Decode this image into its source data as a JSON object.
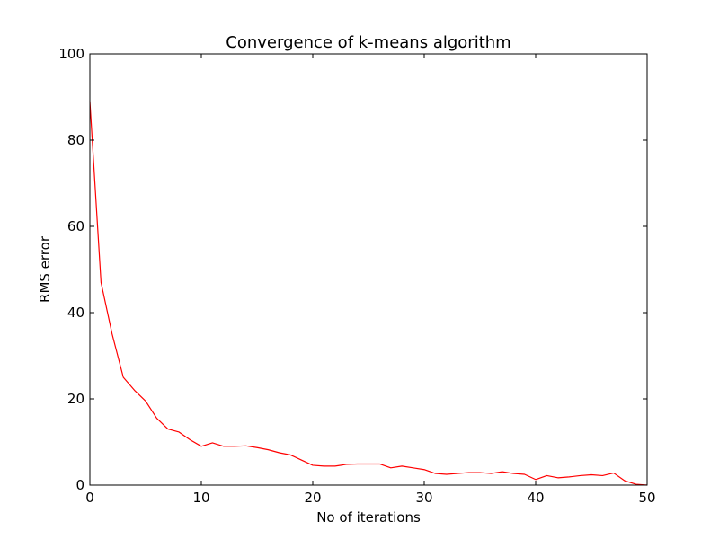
{
  "chart_data": {
    "type": "line",
    "title": "Convergence of k-means algorithm",
    "xlabel": "No of iterations",
    "ylabel": "RMS error",
    "xlim": [
      0,
      50
    ],
    "ylim": [
      0,
      100
    ],
    "xticks": [
      0,
      10,
      20,
      30,
      40,
      50
    ],
    "yticks": [
      0,
      20,
      40,
      60,
      80,
      100
    ],
    "grid": false,
    "series": [
      {
        "color": "#ff0000",
        "x": [
          0,
          1,
          2,
          3,
          4,
          5,
          6,
          7,
          8,
          9,
          10,
          11,
          12,
          13,
          14,
          15,
          16,
          17,
          18,
          19,
          20,
          21,
          22,
          23,
          24,
          25,
          26,
          27,
          28,
          29,
          30,
          31,
          32,
          33,
          34,
          35,
          36,
          37,
          38,
          39,
          40,
          41,
          42,
          43,
          44,
          45,
          46,
          47,
          48,
          49,
          50
        ],
        "y": [
          89,
          47,
          35,
          25,
          22,
          19.5,
          15.5,
          13,
          12.3,
          10.5,
          9,
          9.8,
          9,
          9,
          9.1,
          8.7,
          8.2,
          7.5,
          7,
          5.8,
          4.6,
          4.4,
          4.4,
          4.8,
          4.9,
          4.9,
          4.9,
          4.0,
          4.4,
          4.0,
          3.6,
          2.7,
          2.5,
          2.7,
          2.9,
          2.9,
          2.7,
          3.1,
          2.7,
          2.5,
          1.3,
          2.2,
          1.7,
          1.9,
          2.2,
          2.4,
          2.2,
          2.8,
          1.0,
          0.2,
          0.0
        ]
      }
    ]
  }
}
